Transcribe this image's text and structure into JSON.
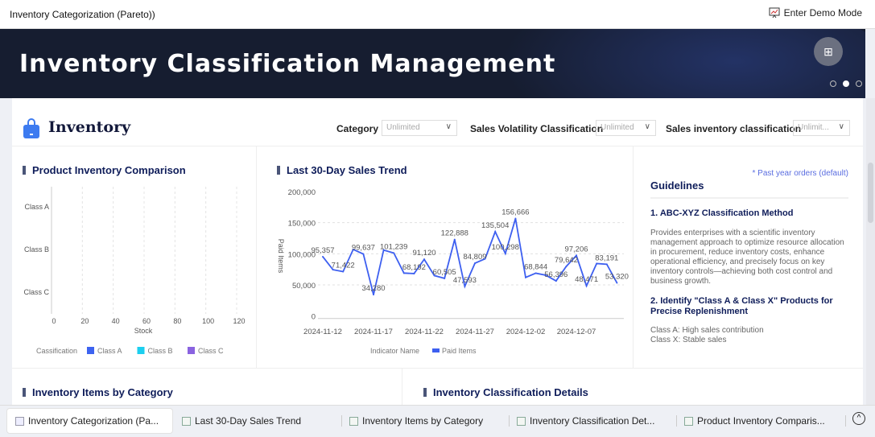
{
  "app": {
    "title": "Inventory Categorization (Pareto))",
    "demo_label": "Enter Demo Mode"
  },
  "banner": {
    "title": "Inventory Classification Management",
    "carousel_active": 2,
    "carousel_count": 3
  },
  "header": {
    "title": "Inventory",
    "filters": [
      {
        "label": "Category",
        "value": "Unlimited"
      },
      {
        "label": "Sales Volatility Classification",
        "value": "Unlimited"
      },
      {
        "label": "Sales inventory classification",
        "value": "Unlimit..."
      }
    ]
  },
  "panels": {
    "inventory_comparison": "Product Inventory Comparison",
    "sales_trend": "Last 30-Day Sales Trend",
    "items_by_category": "Inventory Items by Category",
    "classification_details": "Inventory Classification Details"
  },
  "guidelines": {
    "note": "* Past year orders (default)",
    "title": "Guidelines",
    "s1_title": "1. ABC-XYZ Classification Method",
    "s1_body": "Provides enterprises with a scientific inventory management approach to optimize resource allocation in procurement, reduce inventory costs, enhance operational efficiency, and precisely focus on key inventory controls—achieving both cost control and business growth.",
    "s2_title": "2. Identify \"Class A & Class X\" Products for Precise Replenishment",
    "s2_line1": "Class A: High sales contribution",
    "s2_line2": "Class X: Stable sales"
  },
  "tabs": [
    "Inventory Categorization (Pa...",
    "Last 30-Day Sales Trend",
    "Inventory Items by Category",
    "Inventory Classification Det...",
    "Product Inventory Comparis..."
  ],
  "chart_data": [
    {
      "type": "bar",
      "orientation": "horizontal",
      "categories": [
        "Class A",
        "Class B",
        "Class C"
      ],
      "xlabel": "Stock",
      "xlim": [
        0,
        120
      ],
      "xticks": [
        "0",
        "20",
        "40",
        "60",
        "80",
        "100",
        "120"
      ],
      "legend": {
        "title": "Cassification",
        "position": "bottom",
        "items": [
          {
            "name": "Class A",
            "color": "#3d63f0"
          },
          {
            "name": "Class B",
            "color": "#1ccfef"
          },
          {
            "name": "Class C",
            "color": "#8a63e0"
          }
        ]
      },
      "series": [],
      "grid": true
    },
    {
      "type": "line",
      "ylabel": "Paid Items",
      "ylim": [
        0,
        200000
      ],
      "yticks": [
        "0",
        "50,000",
        "100,000",
        "150,000",
        "200,000"
      ],
      "xticks": [
        "2024-11-12",
        "2024-11-17",
        "2024-11-22",
        "2024-11-27",
        "2024-12-02",
        "2024-12-07"
      ],
      "legend": {
        "title": "Indicator Name",
        "position": "bottom"
      },
      "color": "#3d5ff0",
      "grid": true,
      "x": [
        "2024-11-12",
        "2024-11-13",
        "2024-11-14",
        "2024-11-15",
        "2024-11-16",
        "2024-11-17",
        "2024-11-18",
        "2024-11-19",
        "2024-11-20",
        "2024-11-21",
        "2024-11-22",
        "2024-11-23",
        "2024-11-24",
        "2024-11-25",
        "2024-11-26",
        "2024-11-27",
        "2024-11-28",
        "2024-11-29",
        "2024-11-30",
        "2024-12-01",
        "2024-12-02",
        "2024-12-03",
        "2024-12-04",
        "2024-12-05",
        "2024-12-06",
        "2024-12-07",
        "2024-12-08",
        "2024-12-09",
        "2024-12-10",
        "2024-12-11"
      ],
      "series": [
        {
          "name": "Paid Items",
          "values": [
            95357,
            74500,
            71422,
            107000,
            99637,
            34280,
            106000,
            101239,
            69000,
            68192,
            91120,
            65000,
            60505,
            122888,
            47593,
            84809,
            92000,
            135504,
            100298,
            156666,
            62000,
            68844,
            65500,
            56396,
            79642,
            97206,
            48471,
            84300,
            83191,
            53320
          ],
          "labels": [
            "95,357",
            null,
            "71,422",
            null,
            "99,637",
            "34,280",
            null,
            "101,239",
            null,
            "68,192",
            "91,120",
            null,
            "60,505",
            "122,888",
            "47,593",
            "84,809",
            null,
            "135,504",
            "100,298",
            "156,666",
            null,
            "68,844",
            null,
            "56,396",
            "79,642",
            "97,206",
            "48,471",
            null,
            "83,191",
            "53,320"
          ]
        }
      ]
    }
  ]
}
